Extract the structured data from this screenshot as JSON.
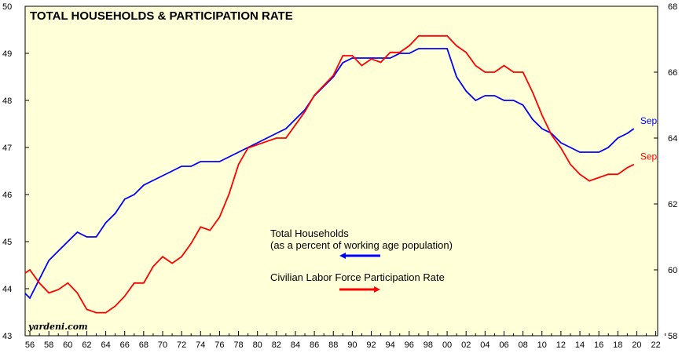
{
  "chart_data": {
    "type": "line",
    "title": "TOTAL HOUSEHOLDS & PARTICIPATION RATE",
    "x_ticks": [
      "56",
      "58",
      "60",
      "62",
      "64",
      "66",
      "68",
      "70",
      "72",
      "74",
      "76",
      "78",
      "80",
      "82",
      "84",
      "86",
      "88",
      "90",
      "92",
      "94",
      "96",
      "98",
      "00",
      "02",
      "04",
      "06",
      "08",
      "10",
      "12",
      "14",
      "16",
      "18",
      "20",
      "22"
    ],
    "xlim": [
      1955.5,
      2022.2
    ],
    "left_axis": {
      "ylim": [
        43,
        50
      ],
      "ticks": [
        43,
        44,
        45,
        46,
        47,
        48,
        49,
        50
      ]
    },
    "right_axis": {
      "ylim": [
        58,
        68
      ],
      "ticks": [
        58,
        60,
        62,
        64,
        66,
        68
      ]
    },
    "grid": false,
    "background": "#ffffd8",
    "series": [
      {
        "name": "Total Households",
        "axis": "left",
        "color": "#0000ff",
        "end_label": "Sep",
        "x": [
          1955.5,
          1956,
          1957,
          1958,
          1959,
          1960,
          1961,
          1962,
          1963,
          1964,
          1965,
          1966,
          1967,
          1968,
          1969,
          1970,
          1971,
          1972,
          1973,
          1974,
          1975,
          1976,
          1977,
          1978,
          1979,
          1980,
          1981,
          1982,
          1983,
          1984,
          1985,
          1986,
          1987,
          1988,
          1989,
          1990,
          1991,
          1992,
          1993,
          1994,
          1995,
          1996,
          1997,
          1998,
          1999,
          2000,
          2001,
          2002,
          2003,
          2004,
          2005,
          2006,
          2007,
          2008,
          2009,
          2010,
          2011,
          2012,
          2013,
          2014,
          2015,
          2016,
          2017,
          2018,
          2019,
          2019.7
        ],
        "y": [
          43.9,
          43.8,
          44.2,
          44.6,
          44.8,
          45.0,
          45.2,
          45.1,
          45.1,
          45.4,
          45.6,
          45.9,
          46.0,
          46.2,
          46.3,
          46.4,
          46.5,
          46.6,
          46.6,
          46.7,
          46.7,
          46.7,
          46.8,
          46.9,
          47.0,
          47.1,
          47.2,
          47.3,
          47.4,
          47.6,
          47.8,
          48.1,
          48.3,
          48.5,
          48.8,
          48.9,
          48.9,
          48.9,
          48.9,
          48.9,
          49.0,
          49.0,
          49.1,
          49.1,
          49.1,
          49.1,
          48.5,
          48.2,
          48.0,
          48.1,
          48.1,
          48.0,
          48.0,
          47.9,
          47.6,
          47.4,
          47.3,
          47.1,
          47.0,
          46.9,
          46.9,
          46.9,
          47.0,
          47.2,
          47.3,
          47.4
        ]
      },
      {
        "name": "Civilian Labor Force Participation Rate",
        "axis": "right",
        "color": "#ff0000",
        "end_label": "Sep",
        "x": [
          1955.5,
          1956,
          1957,
          1958,
          1959,
          1960,
          1961,
          1962,
          1963,
          1964,
          1965,
          1966,
          1967,
          1968,
          1969,
          1970,
          1971,
          1972,
          1973,
          1974,
          1975,
          1976,
          1977,
          1978,
          1979,
          1980,
          1981,
          1982,
          1983,
          1984,
          1985,
          1986,
          1987,
          1988,
          1989,
          1990,
          1991,
          1992,
          1993,
          1994,
          1995,
          1996,
          1997,
          1998,
          1999,
          2000,
          2001,
          2002,
          2003,
          2004,
          2005,
          2006,
          2007,
          2008,
          2009,
          2010,
          2011,
          2012,
          2013,
          2014,
          2015,
          2016,
          2017,
          2018,
          2019,
          2019.7
        ],
        "y": [
          59.9,
          60.0,
          59.6,
          59.3,
          59.4,
          59.6,
          59.3,
          58.8,
          58.7,
          58.7,
          58.9,
          59.2,
          59.6,
          59.6,
          60.1,
          60.4,
          60.2,
          60.4,
          60.8,
          61.3,
          61.2,
          61.6,
          62.3,
          63.2,
          63.7,
          63.8,
          63.9,
          64.0,
          64.0,
          64.4,
          64.8,
          65.3,
          65.6,
          65.9,
          66.5,
          66.5,
          66.2,
          66.4,
          66.3,
          66.6,
          66.6,
          66.8,
          67.1,
          67.1,
          67.1,
          67.1,
          66.8,
          66.6,
          66.2,
          66.0,
          66.0,
          66.2,
          66.0,
          66.0,
          65.4,
          64.7,
          64.1,
          63.7,
          63.2,
          62.9,
          62.7,
          62.8,
          62.9,
          62.9,
          63.1,
          63.2
        ]
      }
    ],
    "legend": [
      {
        "line1": "Total Households",
        "line2": "(as a percent of working age population)",
        "arrow": "left",
        "color": "#0000ff"
      },
      {
        "line1": "Civilian Labor Force Participation Rate",
        "line2": "",
        "arrow": "right",
        "color": "#ff0000"
      }
    ],
    "brand": "yardeni.com"
  }
}
